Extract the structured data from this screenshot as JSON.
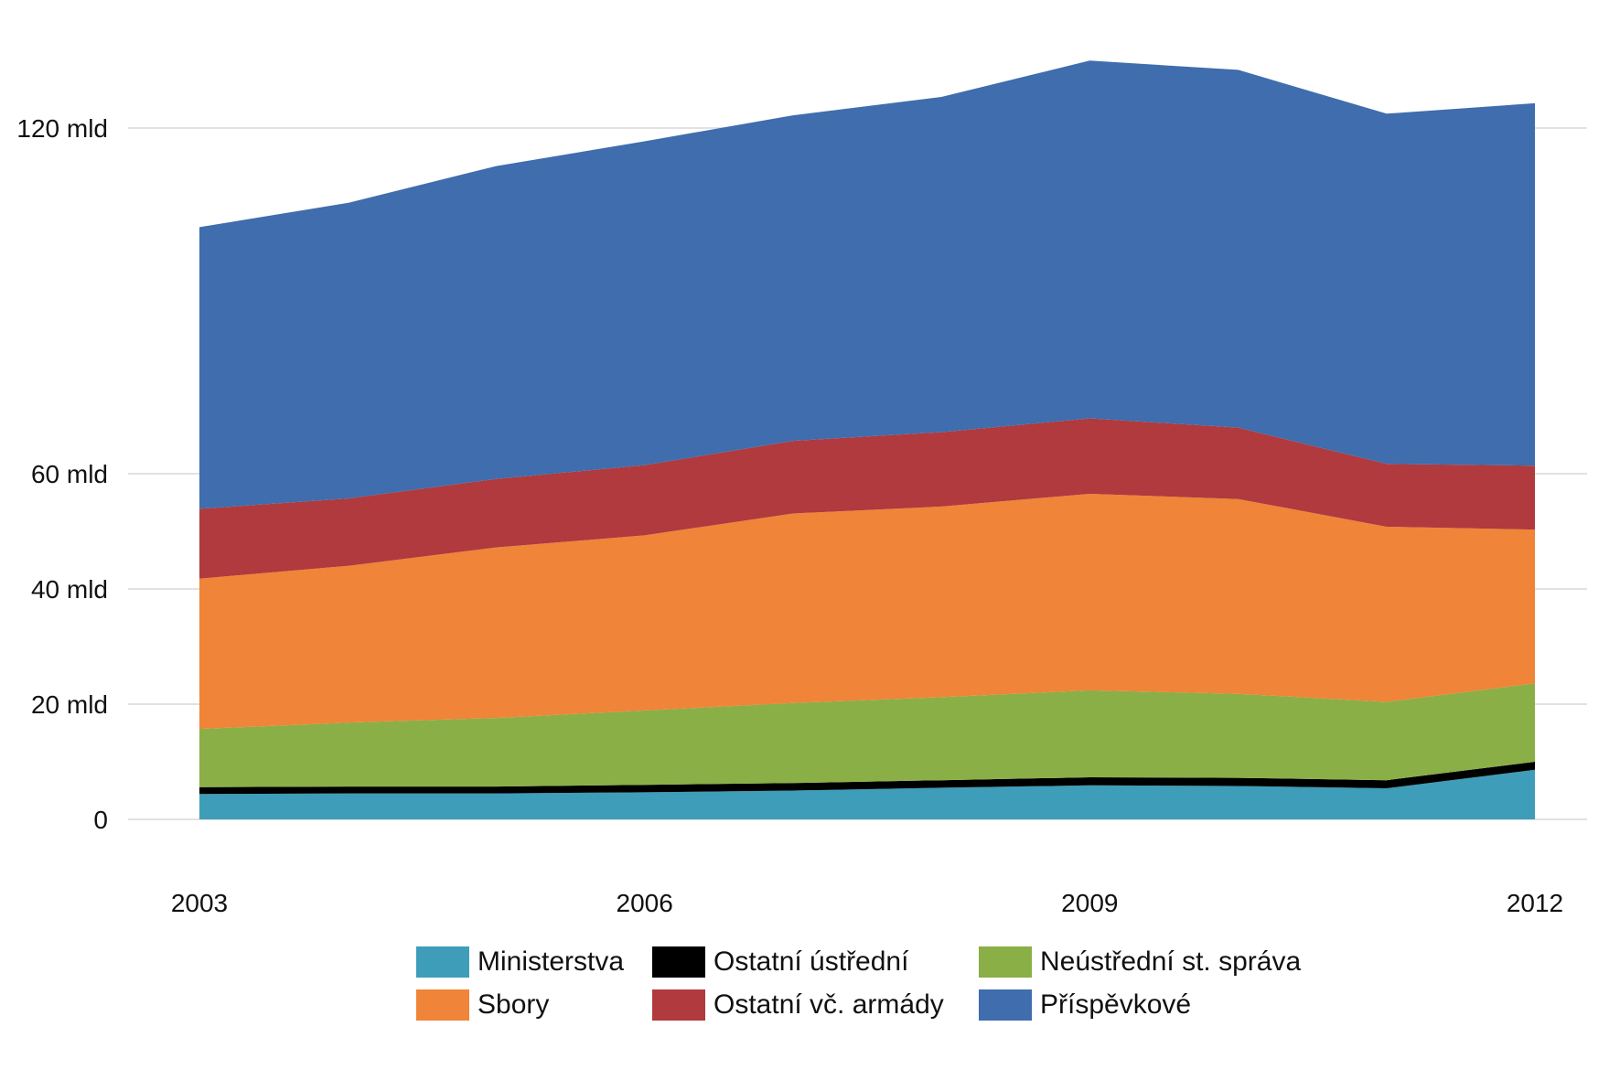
{
  "chart_data": {
    "type": "area",
    "stacked": true,
    "title": "",
    "xlabel": "",
    "ylabel": "",
    "x": [
      2003,
      2004,
      2005,
      2006,
      2007,
      2008,
      2009,
      2010,
      2011,
      2012
    ],
    "x_ticks": [
      {
        "value": 2003,
        "label": "2003"
      },
      {
        "value": 2006,
        "label": "2006"
      },
      {
        "value": 2009,
        "label": "2009"
      },
      {
        "value": 2012,
        "label": "2012"
      }
    ],
    "y_ticks": [
      {
        "value": 0,
        "label": "0"
      },
      {
        "value": 20,
        "label": "20 mld"
      },
      {
        "value": 40,
        "label": "40 mld"
      },
      {
        "value": 60,
        "label": "60 mld"
      },
      {
        "value": 120,
        "label": "120 mld"
      }
    ],
    "ylim": [
      0,
      131
    ],
    "grid": true,
    "legend_position": "bottom",
    "series": [
      {
        "name": "Ministerstva",
        "color": "#3e9db8",
        "values": [
          4.4,
          4.5,
          4.5,
          4.7,
          5.0,
          5.5,
          5.9,
          5.8,
          5.4,
          8.6
        ]
      },
      {
        "name": "Ostatní ústřední",
        "color": "#000000",
        "values": [
          1.2,
          1.2,
          1.2,
          1.3,
          1.3,
          1.3,
          1.4,
          1.4,
          1.4,
          1.4
        ]
      },
      {
        "name": "Neústřední st. správa",
        "color": "#8aaf47",
        "values": [
          10.1,
          11.1,
          11.9,
          12.9,
          13.9,
          14.4,
          15.1,
          14.6,
          13.6,
          13.6
        ]
      },
      {
        "name": "Sbory",
        "color": "#f08438",
        "values": [
          26.1,
          27.2,
          29.6,
          30.4,
          32.9,
          33.1,
          34.1,
          33.8,
          30.4,
          26.7
        ]
      },
      {
        "name": "Ostatní vč. armády",
        "color": "#b03a3d",
        "values": [
          12.1,
          11.7,
          11.9,
          12.2,
          12.6,
          12.9,
          13.1,
          12.4,
          10.9,
          11.1
        ]
      },
      {
        "name": "Příspěvkové",
        "color": "#3f6dad",
        "values": [
          48.9,
          51.3,
          54.3,
          56.2,
          56.5,
          58.2,
          62.1,
          62.1,
          60.8,
          62.9
        ]
      }
    ]
  }
}
